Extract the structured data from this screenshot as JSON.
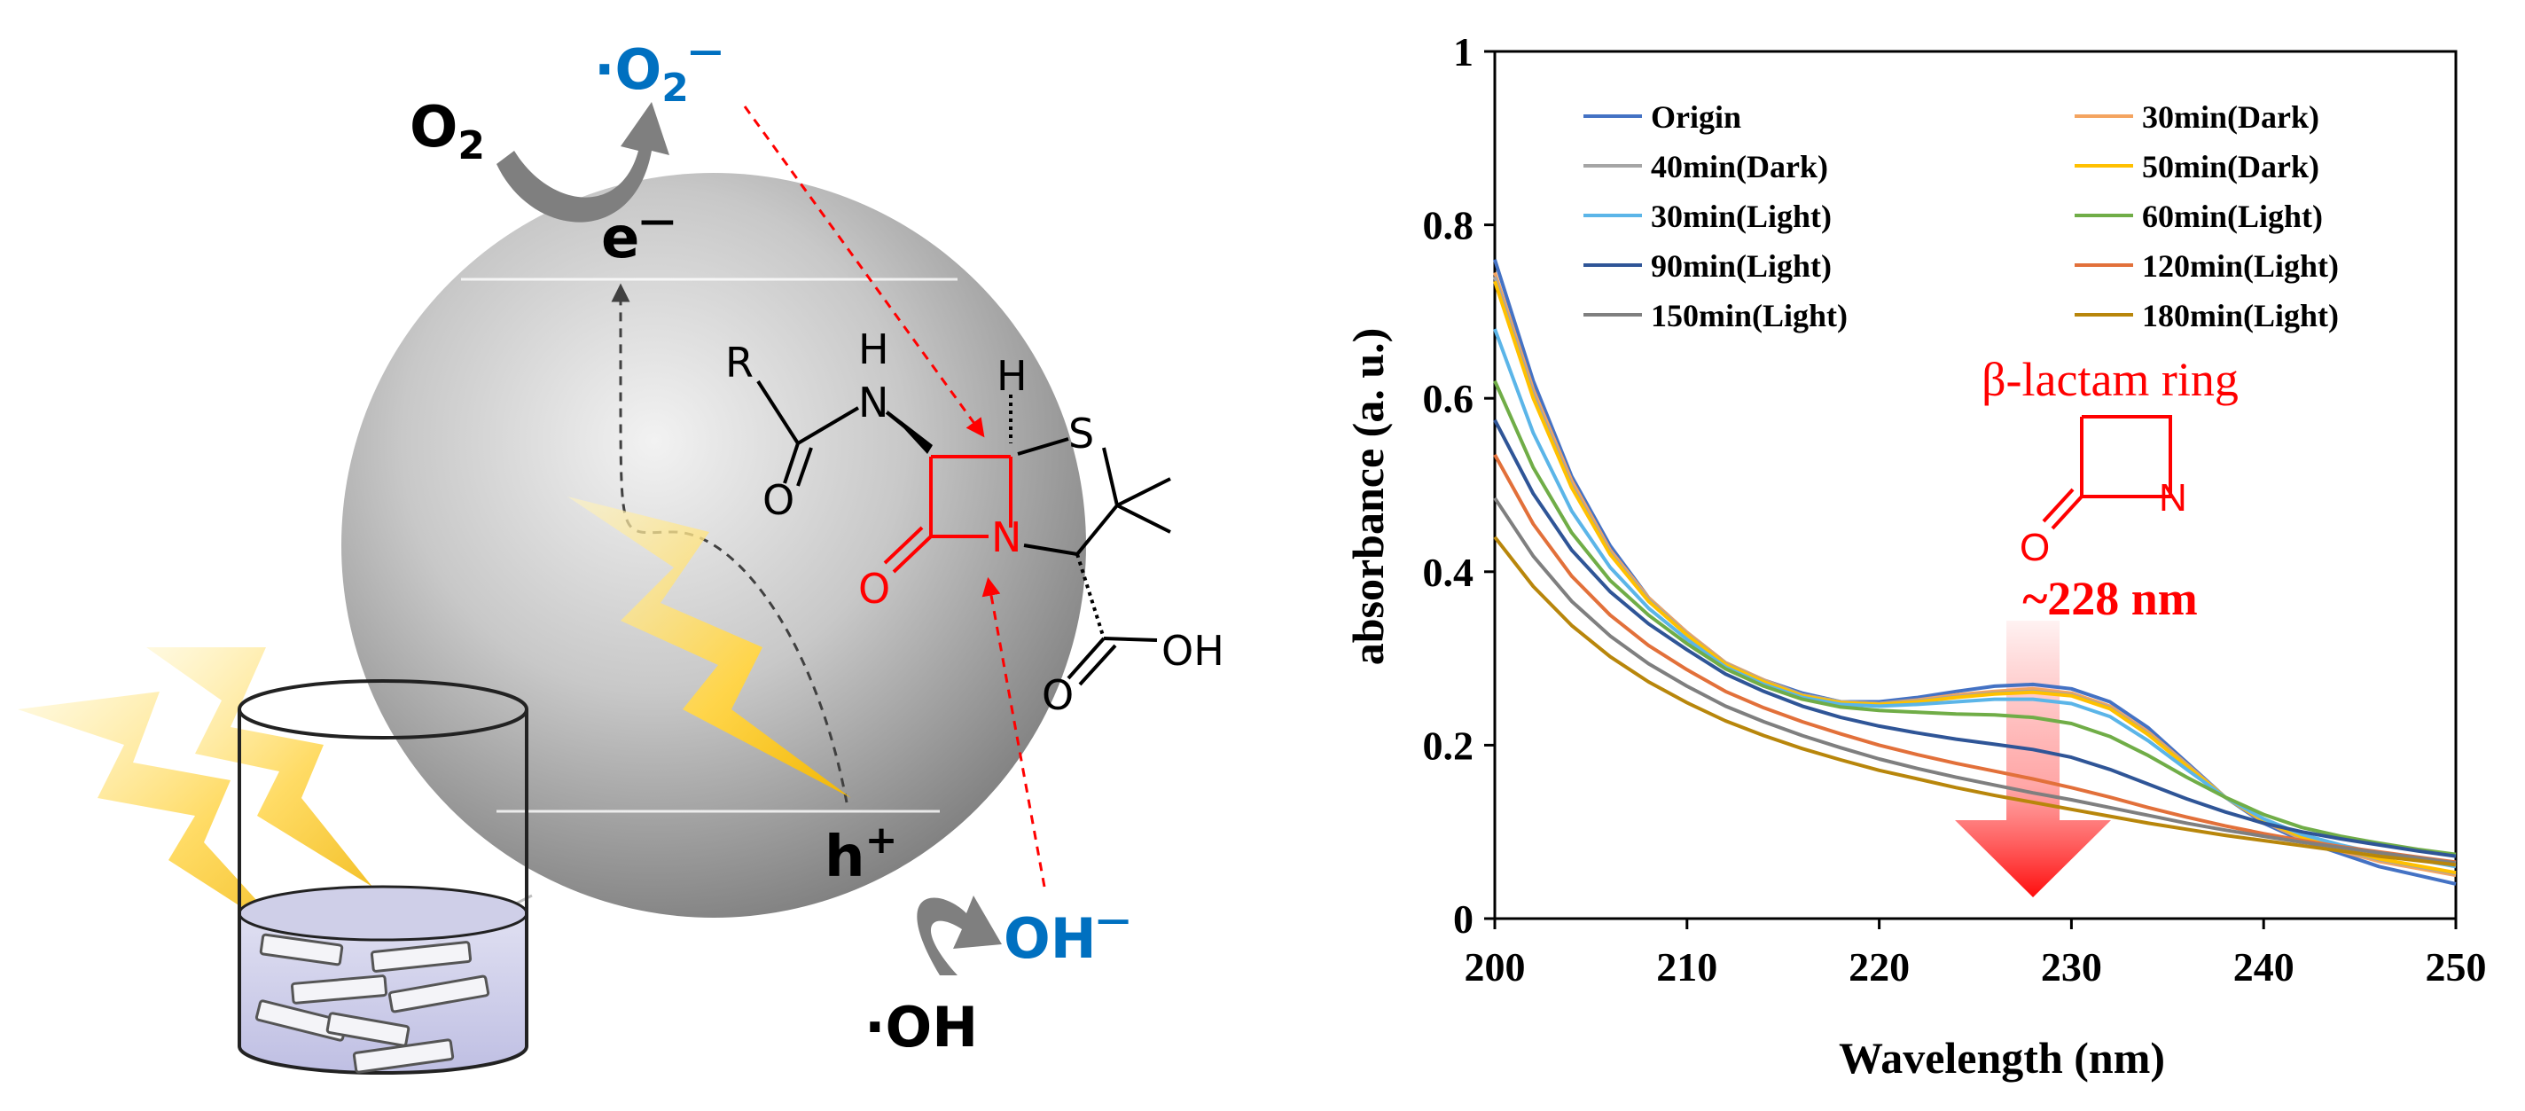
{
  "scheme": {
    "o2_label": "O",
    "o2_sub": "2",
    "superoxide_label": "·O",
    "superoxide_sub": "2",
    "superoxide_charge": "—",
    "electron_label": "e",
    "electron_charge": "—",
    "hole_label": "h",
    "hole_charge": "+",
    "hydroxide_label": "OH",
    "hydroxide_charge": "—",
    "hydroxyl_radical_label": "·OH",
    "molecule_atoms": {
      "r": "R",
      "h_amide": "H",
      "n_amide": "N",
      "o_amide": "O",
      "h_ring": "H",
      "s": "S",
      "o_lactam": "O",
      "n_lactam": "N",
      "o_acid": "O",
      "oh_acid": "OH"
    },
    "colors": {
      "blue": "#0070c0",
      "red": "#ff0000",
      "gray": "#7f7f7f"
    }
  },
  "chart_data": {
    "type": "line",
    "title": "",
    "xlabel": "Wavelength (nm)",
    "ylabel": "absorbance (a. u.)",
    "xlim": [
      200,
      250
    ],
    "ylim": [
      0,
      1
    ],
    "xticks": [
      200,
      210,
      220,
      230,
      240,
      250
    ],
    "yticks": [
      0,
      0.2,
      0.4,
      0.6,
      0.8,
      1
    ],
    "ytick_labels": [
      "0",
      "0.2",
      "0.4",
      "0.6",
      "0.8",
      "1"
    ],
    "x": [
      200,
      202,
      204,
      206,
      208,
      210,
      212,
      214,
      216,
      218,
      220,
      222,
      224,
      226,
      228,
      230,
      232,
      234,
      236,
      238,
      240,
      242,
      244,
      246,
      248,
      250
    ],
    "series": [
      {
        "name": "Origin",
        "color": "#4472c4",
        "values": [
          0.76,
          0.62,
          0.51,
          0.43,
          0.37,
          0.33,
          0.295,
          0.275,
          0.26,
          0.25,
          0.25,
          0.255,
          0.262,
          0.268,
          0.27,
          0.265,
          0.25,
          0.22,
          0.18,
          0.14,
          0.11,
          0.09,
          0.075,
          0.06,
          0.05,
          0.04
        ]
      },
      {
        "name": "30min(Dark)",
        "color": "#f4a460",
        "values": [
          0.745,
          0.61,
          0.505,
          0.425,
          0.37,
          0.33,
          0.295,
          0.275,
          0.258,
          0.25,
          0.248,
          0.252,
          0.258,
          0.262,
          0.265,
          0.26,
          0.245,
          0.215,
          0.178,
          0.14,
          0.112,
          0.092,
          0.078,
          0.066,
          0.058,
          0.05
        ]
      },
      {
        "name": "40min(Dark)",
        "color": "#a5a5a5",
        "values": [
          0.74,
          0.605,
          0.5,
          0.422,
          0.368,
          0.328,
          0.294,
          0.274,
          0.258,
          0.25,
          0.248,
          0.251,
          0.256,
          0.26,
          0.262,
          0.258,
          0.243,
          0.213,
          0.177,
          0.14,
          0.113,
          0.093,
          0.08,
          0.068,
          0.06,
          0.052
        ]
      },
      {
        "name": "50min(Dark)",
        "color": "#ffc000",
        "values": [
          0.735,
          0.6,
          0.497,
          0.42,
          0.366,
          0.327,
          0.293,
          0.273,
          0.257,
          0.249,
          0.247,
          0.25,
          0.255,
          0.259,
          0.261,
          0.257,
          0.242,
          0.212,
          0.176,
          0.14,
          0.113,
          0.094,
          0.081,
          0.069,
          0.061,
          0.053
        ]
      },
      {
        "name": "30min(Light)",
        "color": "#5bb5e8",
        "values": [
          0.68,
          0.56,
          0.47,
          0.405,
          0.358,
          0.322,
          0.29,
          0.27,
          0.255,
          0.247,
          0.245,
          0.247,
          0.25,
          0.253,
          0.253,
          0.248,
          0.233,
          0.205,
          0.172,
          0.14,
          0.115,
          0.097,
          0.085,
          0.075,
          0.068,
          0.06
        ]
      },
      {
        "name": "60min(Light)",
        "color": "#70ad47",
        "values": [
          0.62,
          0.52,
          0.445,
          0.39,
          0.35,
          0.317,
          0.288,
          0.268,
          0.253,
          0.244,
          0.24,
          0.238,
          0.236,
          0.235,
          0.232,
          0.225,
          0.21,
          0.188,
          0.163,
          0.14,
          0.12,
          0.105,
          0.095,
          0.087,
          0.08,
          0.074
        ]
      },
      {
        "name": "90min(Light)",
        "color": "#2f5597",
        "values": [
          0.575,
          0.49,
          0.425,
          0.377,
          0.34,
          0.31,
          0.282,
          0.262,
          0.245,
          0.232,
          0.222,
          0.214,
          0.207,
          0.201,
          0.195,
          0.186,
          0.172,
          0.155,
          0.138,
          0.123,
          0.11,
          0.1,
          0.092,
          0.085,
          0.078,
          0.072
        ]
      },
      {
        "name": "120min(Light)",
        "color": "#e2703a",
        "values": [
          0.535,
          0.455,
          0.395,
          0.35,
          0.315,
          0.287,
          0.262,
          0.243,
          0.227,
          0.213,
          0.2,
          0.189,
          0.179,
          0.17,
          0.161,
          0.151,
          0.14,
          0.128,
          0.117,
          0.107,
          0.098,
          0.09,
          0.083,
          0.077,
          0.071,
          0.065
        ]
      },
      {
        "name": "150min(Light)",
        "color": "#7f7f7f",
        "values": [
          0.485,
          0.418,
          0.366,
          0.326,
          0.294,
          0.268,
          0.245,
          0.227,
          0.211,
          0.197,
          0.184,
          0.173,
          0.163,
          0.154,
          0.145,
          0.137,
          0.128,
          0.119,
          0.11,
          0.102,
          0.095,
          0.088,
          0.082,
          0.076,
          0.07,
          0.064
        ]
      },
      {
        "name": "180min(Light)",
        "color": "#b8860b",
        "values": [
          0.44,
          0.383,
          0.338,
          0.302,
          0.273,
          0.249,
          0.228,
          0.211,
          0.196,
          0.183,
          0.171,
          0.161,
          0.151,
          0.142,
          0.134,
          0.126,
          0.118,
          0.11,
          0.103,
          0.096,
          0.09,
          0.084,
          0.078,
          0.072,
          0.067,
          0.062
        ]
      }
    ],
    "legend_position": "top",
    "annotation": {
      "ring_label": "β-lactam ring",
      "ring_o": "O",
      "ring_n": "N",
      "peak_label": "~228 nm",
      "peak_x": 228,
      "color": "#ff0000"
    }
  }
}
